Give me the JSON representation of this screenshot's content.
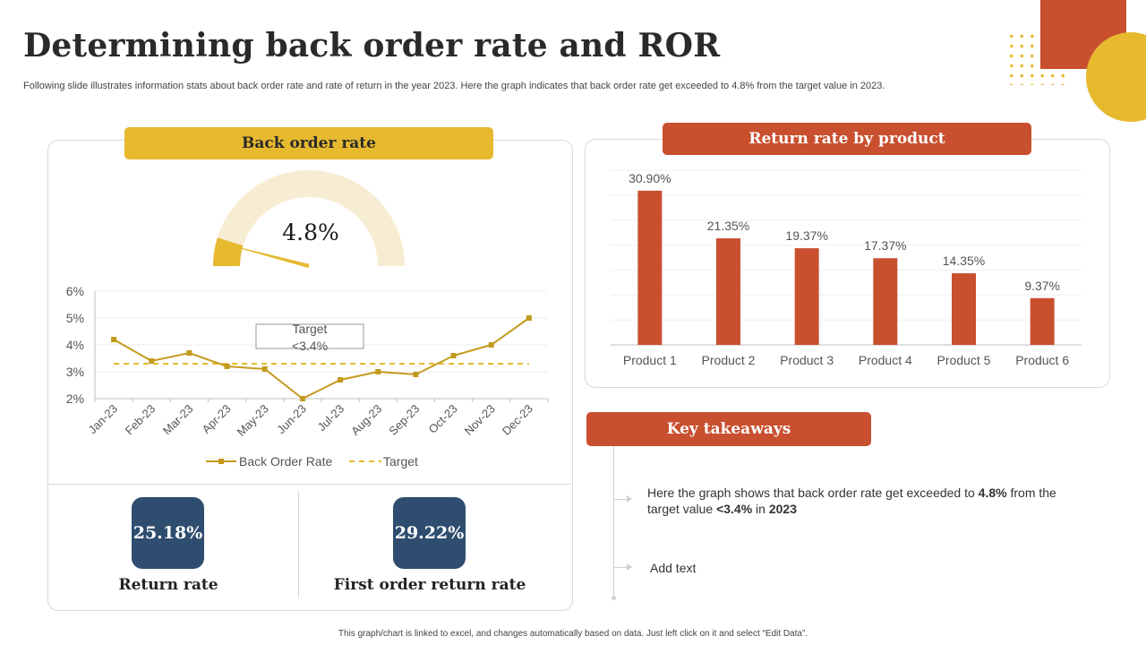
{
  "title": "Determining back order rate and ROR",
  "subtitle": "Following slide illustrates information stats about back order rate and rate of return in the year 2023. Here the graph indicates that back order rate get exceeded to 4.8% from the target value in 2023.",
  "colors": {
    "accent_yellow": "#e6b92f",
    "accent_red": "#c8502f",
    "navy": "#2e4d6f",
    "line_color": "#c49a1e"
  },
  "back_order": {
    "header": "Back order rate",
    "gauge_value": "4.8%",
    "gauge_fraction": 0.048,
    "target_box": [
      "Target",
      "<3.4%"
    ]
  },
  "stats": [
    {
      "value": "25.18%",
      "label": "Return rate"
    },
    {
      "value": "29.22%",
      "label": "First order return rate"
    }
  ],
  "return_rate": {
    "header": "Return rate by product"
  },
  "takeaways": {
    "header": "Key takeaways",
    "item1_prefix": "Here the graph shows that back order rate get exceeded to ",
    "item1_bold1": "4.8%",
    "item1_mid1": " from the target value ",
    "item1_bold2": "<3.4%",
    "item1_mid2": " in ",
    "item1_bold3": "2023",
    "item2": "Add text"
  },
  "footer": "This graph/chart is linked to excel, and changes automatically based on data. Just left click on it and select “Edit Data”.",
  "chart_data": [
    {
      "type": "line",
      "title": "Back order rate",
      "categories": [
        "Jan-23",
        "Feb-23",
        "Mar-23",
        "Apr-23",
        "May-23",
        "Jun-23",
        "Jul-23",
        "Aug-23",
        "Sep-23",
        "Oct-23",
        "Nov-23",
        "Dec-23"
      ],
      "series": [
        {
          "name": "Back Order Rate",
          "values": [
            4.2,
            3.4,
            3.7,
            3.2,
            3.1,
            2.0,
            2.7,
            3.0,
            2.9,
            3.6,
            4.0,
            5.0
          ]
        },
        {
          "name": "Target",
          "values": [
            3.3,
            3.3,
            3.3,
            3.3,
            3.3,
            3.3,
            3.3,
            3.3,
            3.3,
            3.3,
            3.3,
            3.3
          ]
        }
      ],
      "ylim": [
        2,
        6
      ],
      "yticks": [
        "2%",
        "3%",
        "4%",
        "5%",
        "6%"
      ],
      "legend": "bottom",
      "grid": true
    },
    {
      "type": "bar",
      "title": "Return rate by product",
      "categories": [
        "Product 1",
        "Product 2",
        "Product 3",
        "Product 4",
        "Product 5",
        "Product 6"
      ],
      "values": [
        30.9,
        21.35,
        19.37,
        17.37,
        14.35,
        9.37
      ],
      "labels": [
        "30.90%",
        "21.35%",
        "19.37%",
        "17.37%",
        "14.35%",
        "9.37%"
      ],
      "ylim": [
        0,
        35
      ],
      "grid": true
    }
  ]
}
